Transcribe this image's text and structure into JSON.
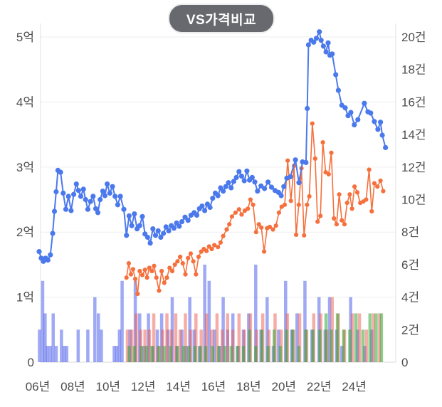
{
  "title": "VS가격비교",
  "chart_data": {
    "type": "line+bar",
    "title": "VS가격비교",
    "legend_position": "none",
    "grid": "horizontal-only",
    "y_left": {
      "unit": "억",
      "min": 0,
      "max": 5.2,
      "ticks": [
        "5억",
        "4억",
        "3억",
        "2억",
        "1억",
        "0"
      ],
      "values": [
        5,
        4,
        3,
        2,
        1,
        0
      ]
    },
    "y_right": {
      "unit": "건",
      "min": 0,
      "max": 20.8,
      "ticks": [
        "20건",
        "18건",
        "16건",
        "14건",
        "12건",
        "10건",
        "8건",
        "6건",
        "4건",
        "2건",
        "0"
      ],
      "values": [
        20,
        18,
        16,
        14,
        12,
        10,
        8,
        6,
        4,
        2,
        0
      ]
    },
    "x": {
      "unit": "년",
      "ticks": [
        "06년",
        "08년",
        "10년",
        "12년",
        "14년",
        "16년",
        "18년",
        "20년",
        "22년",
        "24년"
      ],
      "values": [
        2006,
        2008,
        2010,
        2012,
        2014,
        2016,
        2018,
        2020,
        2022,
        2024
      ],
      "range": [
        2005.7,
        2026.0
      ]
    },
    "colors": {
      "blue_line": "#4b79ec",
      "orange_line": "#f5703c",
      "blue_bar": "rgba(80,98,235,0.55)",
      "red_bar": "rgba(238,92,80,0.50)",
      "green_bar": "rgba(52,168,56,0.55)",
      "grid": "#ededed",
      "axis": "#e0e0e0",
      "baseline": "#d9d9d9",
      "label": "#4d4d4d",
      "title_bg": "#67696e",
      "title_fg": "#ffffff"
    },
    "blue_line": {
      "axis": "left",
      "x": [
        2006.08,
        2006.2,
        2006.32,
        2006.45,
        2006.58,
        2006.72,
        2006.85,
        2006.95,
        2007.05,
        2007.15,
        2007.3,
        2007.45,
        2007.6,
        2007.75,
        2007.9,
        2008.05,
        2008.2,
        2008.32,
        2008.45,
        2008.6,
        2008.72,
        2008.85,
        2009.0,
        2009.15,
        2009.3,
        2009.42,
        2009.55,
        2009.7,
        2009.82,
        2009.95,
        2010.1,
        2010.25,
        2010.4,
        2010.55,
        2010.7,
        2010.9,
        2011.05,
        2011.2,
        2011.35,
        2011.5,
        2011.65,
        2011.8,
        2011.95,
        2012.1,
        2012.25,
        2012.4,
        2012.55,
        2012.7,
        2012.85,
        2013.0,
        2013.15,
        2013.3,
        2013.45,
        2013.6,
        2013.75,
        2013.9,
        2014.05,
        2014.2,
        2014.38,
        2014.55,
        2014.72,
        2014.9,
        2015.05,
        2015.2,
        2015.35,
        2015.5,
        2015.65,
        2015.8,
        2015.95,
        2016.1,
        2016.25,
        2016.4,
        2016.55,
        2016.7,
        2016.85,
        2017.0,
        2017.15,
        2017.3,
        2017.45,
        2017.6,
        2017.75,
        2017.9,
        2018.05,
        2018.2,
        2018.35,
        2018.5,
        2018.7,
        2018.9,
        2019.1,
        2019.3,
        2019.5,
        2019.7,
        2019.85,
        2020.0,
        2020.17,
        2020.37,
        2020.66,
        2020.86,
        2021.06,
        2021.26,
        2021.33,
        2021.4,
        2021.55,
        2021.7,
        2021.85,
        2022.02,
        2022.12,
        2022.25,
        2022.4,
        2022.52,
        2022.62,
        2022.75,
        2022.95,
        2023.1,
        2023.3,
        2023.49,
        2023.65,
        2023.81,
        2024.01,
        2024.21,
        2024.58,
        2024.78,
        2024.94,
        2025.15,
        2025.35,
        2025.5,
        2025.6,
        2025.78
      ],
      "y": [
        1.7,
        1.6,
        1.55,
        1.6,
        1.57,
        1.65,
        1.98,
        2.32,
        2.62,
        2.95,
        2.92,
        2.6,
        2.35,
        2.55,
        2.33,
        2.58,
        2.74,
        2.64,
        2.55,
        2.66,
        2.5,
        2.35,
        2.47,
        2.55,
        2.36,
        2.3,
        2.5,
        2.63,
        2.56,
        2.74,
        2.6,
        2.7,
        2.55,
        2.42,
        2.55,
        2.35,
        1.95,
        2.25,
        2.1,
        2.28,
        2.05,
        2.1,
        2.24,
        1.97,
        1.92,
        1.83,
        2.05,
        1.95,
        2.02,
        1.92,
        1.98,
        2.08,
        2.02,
        2.1,
        2.06,
        2.14,
        2.09,
        2.16,
        2.23,
        2.18,
        2.26,
        2.3,
        2.26,
        2.36,
        2.4,
        2.33,
        2.43,
        2.38,
        2.52,
        2.6,
        2.56,
        2.68,
        2.63,
        2.7,
        2.76,
        2.68,
        2.78,
        2.84,
        2.93,
        2.86,
        2.79,
        2.94,
        2.8,
        2.84,
        2.77,
        2.63,
        2.71,
        2.67,
        2.77,
        2.69,
        2.64,
        2.61,
        2.56,
        2.7,
        2.83,
        2.85,
        3.11,
        2.76,
        3.08,
        3.07,
        3.9,
        4.88,
        4.95,
        4.92,
        4.98,
        5.08,
        4.95,
        4.86,
        4.77,
        4.91,
        4.72,
        4.74,
        4.42,
        4.18,
        3.95,
        3.91,
        3.79,
        3.84,
        3.65,
        3.73,
        3.98,
        3.85,
        3.83,
        3.7,
        3.58,
        3.69,
        3.49,
        3.3
      ]
    },
    "orange_line": {
      "axis": "left",
      "x": [
        2011.05,
        2011.18,
        2011.3,
        2011.42,
        2011.55,
        2011.68,
        2011.8,
        2011.95,
        2012.1,
        2012.22,
        2012.35,
        2012.5,
        2012.62,
        2012.75,
        2012.9,
        2013.05,
        2013.2,
        2013.35,
        2013.5,
        2013.65,
        2013.8,
        2013.95,
        2014.1,
        2014.25,
        2014.4,
        2014.55,
        2014.7,
        2014.85,
        2015.0,
        2015.15,
        2015.3,
        2015.45,
        2015.6,
        2015.75,
        2015.9,
        2016.05,
        2016.25,
        2016.4,
        2016.55,
        2016.75,
        2016.9,
        2017.05,
        2017.25,
        2017.45,
        2017.6,
        2017.78,
        2017.95,
        2018.1,
        2018.25,
        2018.42,
        2018.58,
        2018.72,
        2018.88,
        2019.05,
        2019.2,
        2019.38,
        2019.55,
        2019.72,
        2019.88,
        2020.05,
        2020.22,
        2020.4,
        2020.58,
        2020.7,
        2020.85,
        2021.0,
        2021.15,
        2021.32,
        2021.45,
        2021.62,
        2021.78,
        2021.92,
        2022.08,
        2022.22,
        2022.38,
        2022.55,
        2022.7,
        2022.85,
        2023.0,
        2023.15,
        2023.3,
        2023.45,
        2023.6,
        2023.75,
        2023.88,
        2024.02,
        2024.18,
        2024.35,
        2024.52,
        2024.68,
        2024.85,
        2025.0,
        2025.15,
        2025.32,
        2025.5,
        2025.65
      ],
      "y": [
        1.3,
        1.52,
        1.35,
        1.43,
        1.28,
        1.05,
        1.4,
        1.34,
        1.42,
        1.3,
        1.45,
        1.4,
        1.48,
        1.3,
        1.1,
        1.4,
        1.22,
        1.3,
        1.45,
        1.4,
        1.5,
        1.55,
        1.62,
        1.52,
        1.35,
        1.6,
        1.67,
        1.55,
        1.35,
        1.62,
        1.7,
        1.74,
        1.71,
        1.78,
        1.74,
        1.8,
        1.77,
        1.84,
        1.94,
        2.04,
        2.12,
        2.24,
        2.3,
        2.35,
        2.27,
        2.33,
        2.36,
        2.5,
        2.42,
        2.0,
        2.12,
        2.07,
        1.7,
        2.06,
        2.08,
        2.04,
        2.1,
        2.3,
        2.39,
        2.42,
        3.1,
        2.48,
        3.02,
        1.96,
        2.42,
        2.98,
        1.95,
        2.42,
        2.55,
        3.67,
        3.13,
        2.16,
        2.25,
        3.38,
        2.92,
        2.89,
        3.22,
        2.21,
        2.12,
        2.58,
        2.18,
        2.12,
        2.45,
        2.58,
        2.36,
        2.7,
        2.61,
        2.45,
        2.47,
        2.5,
        2.96,
        2.32,
        2.75,
        2.7,
        2.79,
        2.63
      ]
    },
    "bars": {
      "axis": "right",
      "unit": "건",
      "blue": [
        [
          2006.1,
          2
        ],
        [
          2006.28,
          5
        ],
        [
          2006.42,
          3
        ],
        [
          2006.55,
          1
        ],
        [
          2006.72,
          1
        ],
        [
          2006.88,
          3
        ],
        [
          2007.05,
          1
        ],
        [
          2007.35,
          2
        ],
        [
          2007.5,
          1
        ],
        [
          2007.65,
          1
        ],
        [
          2008.3,
          2
        ],
        [
          2008.85,
          2
        ],
        [
          2009.25,
          4
        ],
        [
          2009.45,
          3
        ],
        [
          2009.62,
          2
        ],
        [
          2010.35,
          1
        ],
        [
          2010.5,
          1
        ],
        [
          2010.65,
          2
        ],
        [
          2010.8,
          5
        ],
        [
          2011.25,
          2
        ],
        [
          2011.55,
          5
        ],
        [
          2011.8,
          3
        ],
        [
          2012.05,
          1
        ],
        [
          2012.3,
          3
        ],
        [
          2012.55,
          1
        ],
        [
          2012.8,
          2
        ],
        [
          2013.05,
          3
        ],
        [
          2013.4,
          2
        ],
        [
          2013.65,
          4
        ],
        [
          2013.9,
          1
        ],
        [
          2014.2,
          2
        ],
        [
          2014.45,
          1
        ],
        [
          2014.65,
          4
        ],
        [
          2014.9,
          2
        ],
        [
          2015.2,
          1
        ],
        [
          2015.5,
          6
        ],
        [
          2015.75,
          5
        ],
        [
          2016.05,
          2
        ],
        [
          2016.35,
          1
        ],
        [
          2016.55,
          4
        ],
        [
          2016.8,
          2
        ],
        [
          2017.1,
          3
        ],
        [
          2017.4,
          1
        ],
        [
          2017.7,
          2
        ],
        [
          2018.0,
          3
        ],
        [
          2018.4,
          6
        ],
        [
          2018.7,
          2
        ],
        [
          2019.05,
          4
        ],
        [
          2019.4,
          1
        ],
        [
          2019.7,
          2
        ],
        [
          2020.1,
          5
        ],
        [
          2020.45,
          2
        ],
        [
          2020.75,
          3
        ],
        [
          2021.2,
          5
        ],
        [
          2021.6,
          2
        ],
        [
          2022.0,
          4
        ],
        [
          2022.35,
          2
        ],
        [
          2022.6,
          4
        ],
        [
          2023.0,
          2
        ],
        [
          2023.3,
          1
        ],
        [
          2023.8,
          4
        ],
        [
          2024.2,
          2
        ],
        [
          2024.6,
          1
        ],
        [
          2025.0,
          2
        ]
      ],
      "red": [
        [
          2011.1,
          2
        ],
        [
          2011.35,
          2
        ],
        [
          2011.6,
          3
        ],
        [
          2011.85,
          2
        ],
        [
          2012.1,
          2
        ],
        [
          2012.35,
          2
        ],
        [
          2012.6,
          3
        ],
        [
          2012.85,
          1
        ],
        [
          2013.1,
          2
        ],
        [
          2013.35,
          3
        ],
        [
          2013.6,
          2
        ],
        [
          2013.85,
          3
        ],
        [
          2014.1,
          2
        ],
        [
          2014.4,
          3
        ],
        [
          2014.7,
          2
        ],
        [
          2015.0,
          3
        ],
        [
          2015.3,
          2
        ],
        [
          2015.6,
          3
        ],
        [
          2015.9,
          2
        ],
        [
          2016.2,
          3
        ],
        [
          2016.5,
          2
        ],
        [
          2016.8,
          3
        ],
        [
          2017.1,
          2
        ],
        [
          2017.45,
          3
        ],
        [
          2017.75,
          2
        ],
        [
          2018.1,
          3
        ],
        [
          2018.45,
          2
        ],
        [
          2018.8,
          3
        ],
        [
          2019.15,
          2
        ],
        [
          2019.5,
          3
        ],
        [
          2019.85,
          2
        ],
        [
          2020.2,
          3
        ],
        [
          2020.55,
          2
        ],
        [
          2020.9,
          3
        ],
        [
          2021.3,
          2
        ],
        [
          2021.7,
          3
        ],
        [
          2022.1,
          3
        ],
        [
          2022.45,
          2
        ],
        [
          2022.75,
          4
        ],
        [
          2023.1,
          3
        ],
        [
          2023.45,
          2
        ],
        [
          2023.9,
          3
        ],
        [
          2024.3,
          3
        ],
        [
          2024.7,
          2
        ],
        [
          2025.1,
          3
        ],
        [
          2025.45,
          3
        ]
      ],
      "green": [
        [
          2011.2,
          1
        ],
        [
          2011.5,
          1
        ],
        [
          2011.9,
          1
        ],
        [
          2012.2,
          1
        ],
        [
          2012.5,
          1
        ],
        [
          2012.9,
          1
        ],
        [
          2013.2,
          1
        ],
        [
          2013.55,
          1
        ],
        [
          2013.95,
          1
        ],
        [
          2014.3,
          1
        ],
        [
          2014.6,
          1
        ],
        [
          2014.95,
          1
        ],
        [
          2015.25,
          1
        ],
        [
          2015.55,
          1
        ],
        [
          2015.95,
          1
        ],
        [
          2016.3,
          1
        ],
        [
          2016.65,
          1
        ],
        [
          2017.0,
          1
        ],
        [
          2017.35,
          1
        ],
        [
          2017.7,
          1
        ],
        [
          2018.05,
          2
        ],
        [
          2018.4,
          1
        ],
        [
          2018.75,
          2
        ],
        [
          2019.1,
          1
        ],
        [
          2019.45,
          2
        ],
        [
          2019.8,
          1
        ],
        [
          2020.15,
          2
        ],
        [
          2020.5,
          2
        ],
        [
          2020.85,
          1
        ],
        [
          2021.25,
          2
        ],
        [
          2021.65,
          2
        ],
        [
          2022.05,
          2
        ],
        [
          2022.4,
          3
        ],
        [
          2022.7,
          2
        ],
        [
          2023.05,
          3
        ],
        [
          2023.4,
          2
        ],
        [
          2023.75,
          2
        ],
        [
          2024.1,
          3
        ],
        [
          2024.5,
          2
        ],
        [
          2024.9,
          3
        ],
        [
          2025.25,
          3
        ],
        [
          2025.55,
          3
        ]
      ]
    }
  }
}
